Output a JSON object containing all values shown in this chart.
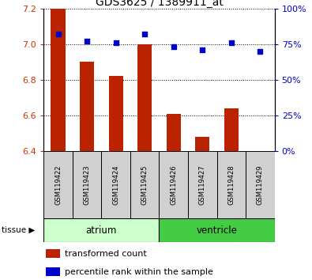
{
  "title": "GDS3625 / 1389911_at",
  "samples": [
    "GSM119422",
    "GSM119423",
    "GSM119424",
    "GSM119425",
    "GSM119426",
    "GSM119427",
    "GSM119428",
    "GSM119429"
  ],
  "transformed_count": [
    7.2,
    6.9,
    6.82,
    7.0,
    6.61,
    6.48,
    6.64,
    6.4
  ],
  "percentile_rank": [
    82,
    77,
    76,
    82,
    73,
    71,
    76,
    70
  ],
  "ylim_left": [
    6.4,
    7.2
  ],
  "ylim_right": [
    0,
    100
  ],
  "yticks_left": [
    6.4,
    6.6,
    6.8,
    7.0,
    7.2
  ],
  "yticks_right": [
    0,
    25,
    50,
    75,
    100
  ],
  "bar_color": "#bb2200",
  "dot_color": "#0000cc",
  "tissue_groups": [
    {
      "label": "atrium",
      "indices": [
        0,
        1,
        2,
        3
      ],
      "color": "#ccffcc"
    },
    {
      "label": "ventricle",
      "indices": [
        4,
        5,
        6,
        7
      ],
      "color": "#44cc44"
    }
  ],
  "bar_width": 0.5,
  "base_value": 6.4,
  "left_tick_color": "#cc3300",
  "right_tick_color": "#0000cc"
}
